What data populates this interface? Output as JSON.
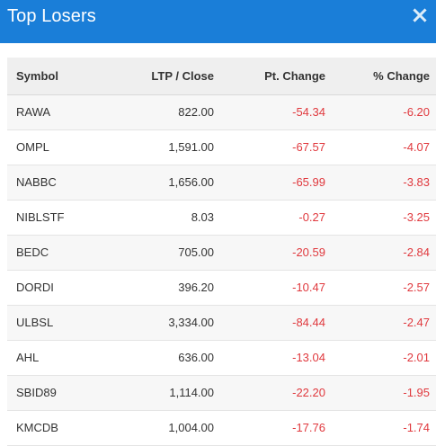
{
  "panel": {
    "title": "Top Losers"
  },
  "table": {
    "columns": {
      "symbol": "Symbol",
      "ltp": "LTP / Close",
      "pt_change": "Pt. Change",
      "pct_change": "% Change"
    },
    "rows": [
      {
        "symbol": "RAWA",
        "ltp": "822.00",
        "pt_change": "-54.34",
        "pct_change": "-6.20"
      },
      {
        "symbol": "OMPL",
        "ltp": "1,591.00",
        "pt_change": "-67.57",
        "pct_change": "-4.07"
      },
      {
        "symbol": "NABBC",
        "ltp": "1,656.00",
        "pt_change": "-65.99",
        "pct_change": "-3.83"
      },
      {
        "symbol": "NIBLSTF",
        "ltp": "8.03",
        "pt_change": "-0.27",
        "pct_change": "-3.25"
      },
      {
        "symbol": "BEDC",
        "ltp": "705.00",
        "pt_change": "-20.59",
        "pct_change": "-2.84"
      },
      {
        "symbol": "DORDI",
        "ltp": "396.20",
        "pt_change": "-10.47",
        "pct_change": "-2.57"
      },
      {
        "symbol": "ULBSL",
        "ltp": "3,334.00",
        "pt_change": "-84.44",
        "pct_change": "-2.47"
      },
      {
        "symbol": "AHL",
        "ltp": "636.00",
        "pt_change": "-13.04",
        "pct_change": "-2.01"
      },
      {
        "symbol": "SBID89",
        "ltp": "1,114.00",
        "pt_change": "-22.20",
        "pct_change": "-1.95"
      },
      {
        "symbol": "KMCDB",
        "ltp": "1,004.00",
        "pt_change": "-17.76",
        "pct_change": "-1.74"
      }
    ]
  },
  "icons": {
    "close": "close-icon"
  },
  "colors": {
    "header_bg": "#1a7ed8",
    "negative": "#e0393e",
    "header_row_bg": "#efefef",
    "odd_row_bg": "#f7f7f7"
  }
}
